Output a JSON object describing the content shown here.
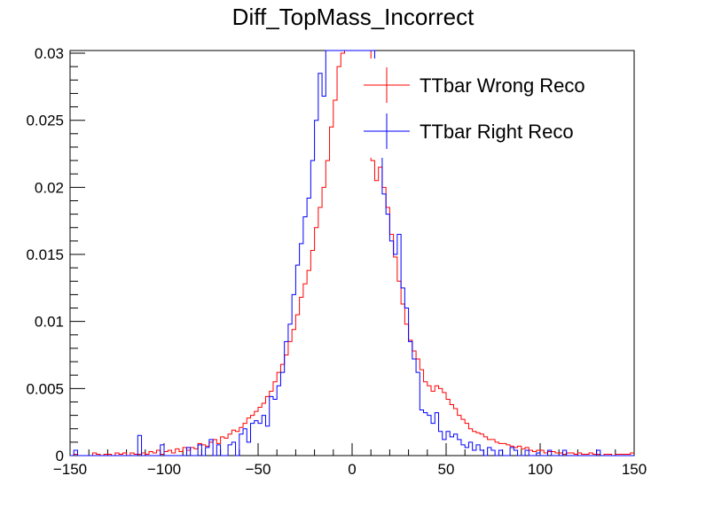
{
  "chart_data": {
    "type": "histogram",
    "title": "Diff_TopMass_Incorrect",
    "xlabel": "",
    "ylabel": "",
    "xlim": [
      -150,
      150
    ],
    "ylim": [
      0,
      0.0302
    ],
    "bin_width": 2,
    "x_ticks": [
      -150,
      -100,
      -50,
      0,
      50,
      100,
      150
    ],
    "x_tick_labels": [
      "−150",
      "−100",
      "−50",
      "0",
      "50",
      "100",
      "150"
    ],
    "y_ticks": [
      0,
      0.005,
      0.01,
      0.015,
      0.02,
      0.025,
      0.03
    ],
    "y_tick_labels": [
      "0",
      "0.005",
      "0.01",
      "0.015",
      "0.02",
      "0.025",
      "0.03"
    ],
    "grid": false,
    "legend_position": "top-right",
    "series": [
      {
        "name": "TTbar Wrong Reco",
        "color": "#ff0000",
        "bin_low_edges": [
          -150,
          -148,
          -146,
          -144,
          -142,
          -140,
          -138,
          -136,
          -134,
          -132,
          -130,
          -128,
          -126,
          -124,
          -122,
          -120,
          -118,
          -116,
          -114,
          -112,
          -110,
          -108,
          -106,
          -104,
          -102,
          -100,
          -98,
          -96,
          -94,
          -92,
          -90,
          -88,
          -86,
          -84,
          -82,
          -80,
          -78,
          -76,
          -74,
          -72,
          -70,
          -68,
          -66,
          -64,
          -62,
          -60,
          -58,
          -56,
          -54,
          -52,
          -50,
          -48,
          -46,
          -44,
          -42,
          -40,
          -38,
          -36,
          -34,
          -32,
          -30,
          -28,
          -26,
          -24,
          -22,
          -20,
          -18,
          -16,
          -14,
          -12,
          -10,
          -8,
          -6,
          -4,
          -2,
          0,
          2,
          4,
          6,
          8,
          10,
          12,
          14,
          16,
          18,
          20,
          22,
          24,
          26,
          28,
          30,
          32,
          34,
          36,
          38,
          40,
          42,
          44,
          46,
          48,
          50,
          52,
          54,
          56,
          58,
          60,
          62,
          64,
          66,
          68,
          70,
          72,
          74,
          76,
          78,
          80,
          82,
          84,
          86,
          88,
          90,
          92,
          94,
          96,
          98,
          100,
          102,
          104,
          106,
          108,
          110,
          112,
          114,
          116,
          118,
          120,
          122,
          124,
          126,
          128,
          130,
          132,
          134,
          136,
          138,
          140,
          142,
          144,
          146,
          148
        ],
        "values": [
          0,
          0.0001,
          0,
          0,
          0,
          0,
          0.0002,
          0.0001,
          0,
          0.0001,
          0.0001,
          0,
          0.0002,
          0.0001,
          0.0002,
          0,
          0.0002,
          0.0001,
          0.0001,
          0.0002,
          0.0001,
          0.0003,
          0.0002,
          0.0004,
          0.0001,
          0.0003,
          0.0004,
          0.0002,
          0.0005,
          0.0003,
          0.0006,
          0.0004,
          0.0006,
          0.0005,
          0.0009,
          0.0008,
          0.0007,
          0.001,
          0.0012,
          0.0009,
          0.0014,
          0.0013,
          0.0016,
          0.0019,
          0.0018,
          0.0021,
          0.0024,
          0.0028,
          0.003,
          0.0033,
          0.0036,
          0.0039,
          0.0044,
          0.0048,
          0.0055,
          0.0062,
          0.0068,
          0.0075,
          0.0085,
          0.0094,
          0.0105,
          0.0118,
          0.0128,
          0.0138,
          0.0153,
          0.017,
          0.0185,
          0.02,
          0.022,
          0.0245,
          0.0265,
          0.029,
          0.03,
          0.0302,
          0.0302,
          0.0302,
          0.0302,
          0.0302,
          0.0302,
          0.0302,
          0.022,
          0.0205,
          0.0215,
          0.02,
          0.0185,
          0.0165,
          0.0148,
          0.013,
          0.0113,
          0.0098,
          0.0086,
          0.0078,
          0.0072,
          0.0064,
          0.0055,
          0.0052,
          0.0048,
          0.0052,
          0.005,
          0.0047,
          0.0042,
          0.0038,
          0.0035,
          0.003,
          0.0027,
          0.0024,
          0.002,
          0.0018,
          0.0017,
          0.0016,
          0.0014,
          0.0012,
          0.0012,
          0.001,
          0.0009,
          0.0009,
          0.0008,
          0.0007,
          0.0006,
          0.0007,
          0.0005,
          0.0006,
          0.0004,
          0.0003,
          0.0004,
          0.0004,
          0.0002,
          0.0003,
          0.0003,
          0.0002,
          0.0002,
          0.0001,
          0.0002,
          0.0002,
          0.0001,
          0.0002,
          0.0001,
          0.0001,
          0.0002,
          0.0001,
          0.0001,
          0,
          0.0001,
          0.0001,
          0,
          0.0001,
          0.0001,
          0.0001,
          0.0001,
          0.0002
        ]
      },
      {
        "name": "TTbar Right Reco",
        "color": "#0000ff",
        "bin_low_edges": [
          -150,
          -148,
          -146,
          -144,
          -142,
          -140,
          -138,
          -136,
          -134,
          -132,
          -130,
          -128,
          -126,
          -124,
          -122,
          -120,
          -118,
          -116,
          -114,
          -112,
          -110,
          -108,
          -106,
          -104,
          -102,
          -100,
          -98,
          -96,
          -94,
          -92,
          -90,
          -88,
          -86,
          -84,
          -82,
          -80,
          -78,
          -76,
          -74,
          -72,
          -70,
          -68,
          -66,
          -64,
          -62,
          -60,
          -58,
          -56,
          -54,
          -52,
          -50,
          -48,
          -46,
          -44,
          -42,
          -40,
          -38,
          -36,
          -34,
          -32,
          -30,
          -28,
          -26,
          -24,
          -22,
          -20,
          -18,
          -16,
          -14,
          -12,
          -10,
          -8,
          -6,
          -4,
          -2,
          0,
          2,
          4,
          6,
          8,
          10,
          12,
          14,
          16,
          18,
          20,
          22,
          24,
          26,
          28,
          30,
          32,
          34,
          36,
          38,
          40,
          42,
          44,
          46,
          48,
          50,
          52,
          54,
          56,
          58,
          60,
          62,
          64,
          66,
          68,
          70,
          72,
          74,
          76,
          78,
          80,
          82,
          84,
          86,
          88,
          90,
          92,
          94,
          96,
          98,
          100,
          102,
          104,
          106,
          108,
          110,
          112,
          114,
          116,
          118,
          120,
          122,
          124,
          126,
          128,
          130,
          132,
          134,
          136,
          138,
          140,
          142,
          144,
          146,
          148
        ],
        "values": [
          0,
          0.0004,
          0,
          0,
          0,
          0,
          0,
          0,
          0,
          0,
          0,
          0,
          0,
          0,
          0,
          0,
          0,
          0,
          0.0015,
          0,
          0,
          0,
          0,
          0,
          0.0008,
          0,
          0,
          0,
          0,
          0,
          0,
          0.0006,
          0,
          0,
          0.0008,
          0,
          0.0006,
          0.0012,
          0,
          0.0008,
          0,
          0,
          0.0008,
          0.001,
          0,
          0.0016,
          0.002,
          0.001,
          0.0024,
          0.0026,
          0.0024,
          0.003,
          0.0022,
          0.0044,
          0.0042,
          0.0052,
          0.0062,
          0.0085,
          0.0098,
          0.012,
          0.0142,
          0.0158,
          0.0178,
          0.0192,
          0.022,
          0.025,
          0.0285,
          0.0268,
          0.0302,
          0.0302,
          0.0302,
          0.0302,
          0.0302,
          0.0302,
          0.0302,
          0.0302,
          0.0302,
          0.0302,
          0.0302,
          0.0302,
          0.0302,
          0.0235,
          0.0225,
          0.0195,
          0.018,
          0.016,
          0.015,
          0.0165,
          0.0125,
          0.011,
          0.0085,
          0.0072,
          0.0062,
          0.0034,
          0.0032,
          0.003,
          0.0024,
          0.0032,
          0.0018,
          0.0012,
          0.0018,
          0.0014,
          0.0016,
          0.0012,
          0.0008,
          0.0006,
          0.001,
          0.0004,
          0.0008,
          0.0004,
          0,
          0.0006,
          0.0004,
          0,
          0.0004,
          0,
          0,
          0.0006,
          0.0004,
          0,
          0,
          0.0004,
          0,
          0,
          0.0002,
          0,
          0,
          0.0004,
          0,
          0,
          0,
          0.0004,
          0,
          0,
          0,
          0,
          0,
          0,
          0,
          0,
          0.0004,
          0,
          0,
          0,
          0,
          0,
          0,
          0,
          0,
          0,
          0
        ]
      }
    ]
  }
}
